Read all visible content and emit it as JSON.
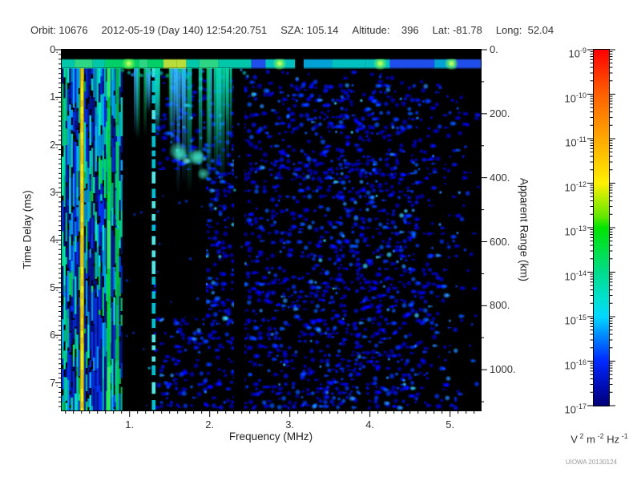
{
  "header": {
    "items": [
      "Orbit: 10676",
      "2012-05-19 (Day 140) 12:54:20.751",
      "SZA: 105.14",
      "Altitude:    396",
      "Lat: -81.78",
      "Long:  52.04"
    ]
  },
  "chart_data": {
    "type": "heatmap",
    "subtype": "radar-sounder-ionogram-spectrogram",
    "title": "Orbit 10676, 2012-05-19 (Day 140) 12:54:20.751",
    "x_axis": {
      "label": "Frequency (MHz)",
      "range": [
        0.15,
        5.38
      ],
      "major_ticks": [
        1,
        2,
        3,
        4,
        5
      ],
      "major_tick_labels": [
        "1.",
        "2.",
        "3.",
        "4.",
        "5."
      ],
      "minor_tick_step": 0.1
    },
    "y_axis_left": {
      "label": "Time Delay (ms)",
      "range": [
        0,
        7.58
      ],
      "direction": "down",
      "major_ticks": [
        0,
        1,
        2,
        3,
        4,
        5,
        6,
        7
      ],
      "major_tick_labels": [
        "0.",
        "1.",
        "2.",
        "3.",
        "4.",
        "5.",
        "6.",
        "7."
      ],
      "minor_tick_step": 0.1
    },
    "y_axis_right": {
      "label": "Apparent Range (km)",
      "range": [
        0,
        1128
      ],
      "major_ticks": [
        0,
        200,
        400,
        600,
        800,
        1000
      ],
      "major_tick_labels": [
        "0.",
        "200.",
        "400.",
        "600.",
        "800.",
        "1000."
      ],
      "minor_tick_step": 100
    },
    "colorbar": {
      "scale": "log",
      "tick_exponents": [
        -9,
        -10,
        -11,
        -12,
        -13,
        -14,
        -15,
        -16,
        -17
      ],
      "unit_parts": [
        [
          "V",
          "2"
        ],
        [
          "m",
          "-2"
        ],
        [
          "Hz",
          "-1"
        ]
      ],
      "gradient": [
        [
          0,
          "#ff0000"
        ],
        [
          0.125,
          "#ff6000"
        ],
        [
          0.25,
          "#ffa800"
        ],
        [
          0.375,
          "#fff000"
        ],
        [
          0.47,
          "#60e800"
        ],
        [
          0.5,
          "#00e400"
        ],
        [
          0.625,
          "#00dc8c"
        ],
        [
          0.7,
          "#00e0d0"
        ],
        [
          0.75,
          "#00d8ff"
        ],
        [
          0.81,
          "#0080ff"
        ],
        [
          0.875,
          "#0028ff"
        ],
        [
          0.95,
          "#000cb0"
        ],
        [
          1,
          "#000078"
        ]
      ]
    },
    "branding": "UIOWA 20130124",
    "features": {
      "background": "#000000",
      "top_black_band_y": [
        0,
        0.0255
      ],
      "surface_band": {
        "y": [
          0.0255,
          0.051
        ],
        "split_x": 0.43,
        "left_colors": [
          "#00e070",
          "#30e890",
          "#00d8b8",
          "#70e850",
          "#c8f040"
        ],
        "right_colors": [
          "#00d0d0",
          "#0080ff",
          "#00b0e8",
          "#2255ff"
        ],
        "right_black_chance": 0.28,
        "hotspots_x": [
          0.16,
          0.52,
          0.76,
          0.93
        ]
      },
      "stripe_region": {
        "x": [
          0,
          0.145
        ],
        "colors": [
          "#00e060",
          "#00e8cc",
          "#00aaff",
          "#0033ff",
          "#001499"
        ]
      },
      "named_stripes": [
        {
          "name": "yellow-interference-line",
          "freq_mhz": 0.4,
          "x": [
            0.045,
            0.052
          ],
          "colors": [
            "#ffd000",
            "#ffe400",
            "#f0c000"
          ],
          "edge_color": "#88c800"
        },
        {
          "name": "green-interference-line-1",
          "freq_mhz": 0.75,
          "x": [
            0.108,
            0.117
          ],
          "colors": [
            "#00dd33",
            "#33ee55"
          ]
        },
        {
          "name": "green-interference-line-2",
          "freq_mhz": 0.85,
          "x": [
            0.129,
            0.137
          ],
          "colors": [
            "#00bb44",
            "#00cc66"
          ]
        },
        {
          "name": "cyan-dashed-line",
          "freq_mhz": 1.28,
          "x": [
            0.215,
            0.224
          ],
          "colors": [
            "#00c8d8",
            "#55eeee"
          ]
        }
      ],
      "hang_region": {
        "x": [
          0.145,
          0.405
        ],
        "colors": [
          "#00cc66",
          "#00ddaa",
          "#33bbff"
        ]
      },
      "cyan_blob_cluster": {
        "x": [
          0.277,
          0.36
        ],
        "y": [
          0.278,
          0.36
        ],
        "color": "#40e8c8"
      },
      "black_zones": [
        {
          "x": [
            0.145,
            0.216
          ],
          "y": [
            0.362,
            1
          ]
        },
        {
          "x": [
            0.2255,
            0.344
          ],
          "y": [
            0.333,
            0.74
          ]
        },
        {
          "x": [
            0.411,
            0.436
          ],
          "y": [
            0.051,
            1
          ]
        }
      ],
      "speckle": {
        "palette": [
          "#0000cc",
          "#0011ee",
          "#0033ff",
          "#0055ff",
          "#2288ff",
          "#33ccff"
        ],
        "density_profile": [
          [
            0,
            0
          ],
          [
            0.14,
            0
          ],
          [
            0.19,
            0.05
          ],
          [
            0.226,
            0.3
          ],
          [
            0.3,
            0.36
          ],
          [
            0.55,
            0.35
          ],
          [
            0.66,
            0.43
          ],
          [
            0.82,
            0.42
          ],
          [
            0.88,
            0.26
          ],
          [
            0.94,
            0.14
          ],
          [
            1,
            0.05
          ]
        ]
      }
    }
  }
}
